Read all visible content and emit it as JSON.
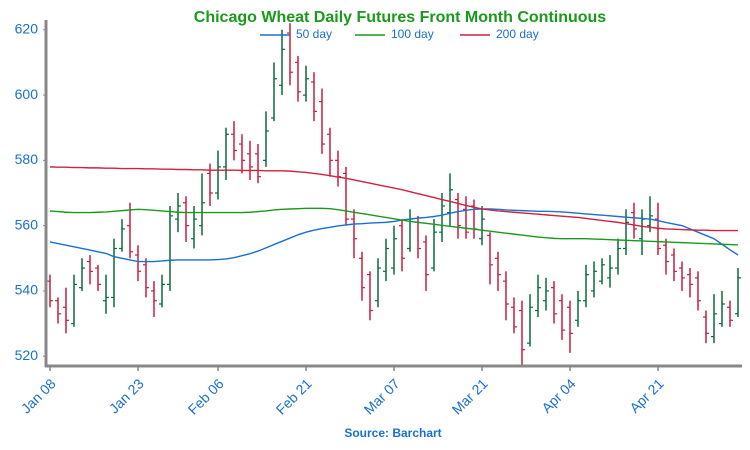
{
  "chart_data": {
    "type": "ohlc",
    "title": "Chicago Wheat Daily Futures Front Month Continuous",
    "source": "Source: Barchart",
    "categories": [
      "Jan 08",
      null,
      null,
      null,
      null,
      null,
      null,
      null,
      null,
      null,
      null,
      "Jan 23",
      null,
      null,
      null,
      null,
      null,
      null,
      null,
      null,
      null,
      "Feb 06",
      null,
      null,
      null,
      null,
      null,
      null,
      null,
      null,
      null,
      null,
      "Feb 21",
      null,
      null,
      null,
      null,
      null,
      null,
      null,
      null,
      null,
      null,
      "Mar 07",
      null,
      null,
      null,
      null,
      null,
      null,
      null,
      null,
      null,
      null,
      "Mar 21",
      null,
      null,
      null,
      null,
      null,
      null,
      null,
      null,
      null,
      null,
      "Apr 04",
      null,
      null,
      null,
      null,
      null,
      null,
      null,
      null,
      null,
      null,
      "Apr 21",
      null,
      null,
      null,
      null,
      null,
      null,
      null,
      null,
      null,
      null
    ],
    "ohlc": {
      "up_color": "#0b6b3a",
      "down_color": "#c4203f",
      "open": [
        543,
        537,
        535,
        530,
        541,
        549,
        547,
        537,
        538,
        553,
        560,
        551,
        548,
        540,
        536,
        542,
        562,
        567,
        556,
        560,
        576,
        570,
        578,
        588,
        585,
        582,
        582,
        580,
        593,
        603,
        619,
        610,
        600,
        604,
        598,
        588,
        580,
        576,
        562,
        550,
        545,
        537,
        546,
        547,
        560,
        553,
        561,
        555,
        547,
        558,
        564,
        568,
        565,
        566,
        556,
        557,
        550,
        543,
        535,
        534,
        524,
        534,
        537,
        541,
        537,
        535,
        531,
        537,
        540,
        543,
        544,
        547,
        553,
        564,
        556,
        560,
        562,
        554,
        551,
        547,
        545,
        544,
        532,
        526,
        530,
        535,
        533
      ],
      "high": [
        545,
        538,
        541,
        545,
        550,
        551,
        548,
        545,
        556,
        562,
        567,
        554,
        550,
        543,
        545,
        566,
        570,
        569,
        566,
        576,
        579,
        583,
        590,
        592,
        588,
        586,
        585,
        595,
        610,
        620,
        622,
        612,
        609,
        607,
        602,
        590,
        583,
        578,
        565,
        552,
        546,
        550,
        556,
        560,
        562,
        565,
        563,
        557,
        562,
        570,
        576,
        570,
        569,
        568,
        566,
        558,
        552,
        546,
        538,
        537,
        539,
        545,
        544,
        543,
        539,
        537,
        540,
        548,
        549,
        550,
        551,
        556,
        565,
        567,
        565,
        569,
        567,
        556,
        553,
        549,
        547,
        546,
        534,
        539,
        540,
        537,
        547
      ],
      "low": [
        535,
        530,
        527,
        529,
        540,
        542,
        540,
        533,
        535,
        552,
        550,
        543,
        538,
        532,
        535,
        540,
        558,
        555,
        553,
        557,
        566,
        568,
        574,
        580,
        576,
        574,
        573,
        578,
        592,
        600,
        603,
        598,
        598,
        592,
        582,
        575,
        572,
        560,
        550,
        537,
        531,
        535,
        543,
        545,
        546,
        552,
        550,
        540,
        546,
        555,
        560,
        556,
        556,
        556,
        554,
        542,
        540,
        531,
        527,
        517,
        523,
        532,
        534,
        530,
        525,
        521,
        529,
        535,
        538,
        542,
        541,
        545,
        551,
        556,
        551,
        558,
        551,
        545,
        543,
        540,
        538,
        534,
        524,
        524,
        529,
        529,
        532
      ],
      "close": [
        537,
        533,
        531,
        542,
        547,
        546,
        542,
        538,
        553,
        559,
        552,
        546,
        541,
        537,
        542,
        563,
        566,
        560,
        562,
        567,
        570,
        578,
        588,
        583,
        580,
        578,
        575,
        589,
        605,
        614,
        607,
        601,
        605,
        595,
        585,
        580,
        575,
        562,
        556,
        541,
        534,
        547,
        553,
        556,
        550,
        562,
        553,
        545,
        558,
        566,
        571,
        560,
        558,
        559,
        562,
        548,
        545,
        536,
        529,
        522,
        535,
        541,
        540,
        533,
        528,
        527,
        537,
        545,
        546,
        548,
        547,
        553,
        561,
        559,
        562,
        563,
        553,
        549,
        546,
        544,
        542,
        537,
        527,
        533,
        536,
        531,
        544
      ]
    },
    "series": [
      {
        "name": "50 day",
        "color": "#1a6fd1",
        "values": [
          555,
          554.5,
          554,
          553.5,
          553,
          552.5,
          552,
          551.5,
          550.5,
          550,
          549.5,
          549,
          549,
          549,
          549.2,
          549.4,
          549.5,
          549.5,
          549.5,
          549.5,
          549.5,
          549.6,
          549.8,
          550.2,
          550.8,
          551.4,
          552.2,
          553.2,
          554.2,
          555.2,
          556.2,
          557.2,
          558,
          558.6,
          559.1,
          559.5,
          559.9,
          560.2,
          560.5,
          560.6,
          560.8,
          560.9,
          561,
          561.3,
          561.7,
          562,
          562.3,
          562.5,
          562.8,
          563.2,
          563.8,
          564.3,
          564.7,
          565,
          565.1,
          565.1,
          565,
          564.8,
          564.7,
          564.6,
          564.5,
          564.4,
          564.4,
          564.3,
          564.2,
          564,
          563.8,
          563.6,
          563.4,
          563.2,
          563,
          562.8,
          562.6,
          562.4,
          562.2,
          562,
          561.5,
          561,
          560.5,
          560,
          559,
          558,
          557,
          556,
          554.3,
          552.6,
          551
        ]
      },
      {
        "name": "100 day",
        "color": "#1a9a1a",
        "values": [
          564.5,
          564.3,
          564.1,
          564,
          564,
          564,
          564.1,
          564.2,
          564.4,
          564.6,
          564.8,
          565,
          564.9,
          564.7,
          564.5,
          564.3,
          564.1,
          564,
          564,
          564,
          564,
          564,
          564,
          564,
          564,
          564.1,
          564.3,
          564.5,
          564.8,
          565,
          565.1,
          565.2,
          565.3,
          565.3,
          565.3,
          565.2,
          564.9,
          564.5,
          564.1,
          563.7,
          563.3,
          562.9,
          562.5,
          562.1,
          561.7,
          561.3,
          561,
          560.7,
          560.4,
          560.1,
          559.8,
          559.5,
          559.2,
          558.9,
          558.6,
          558.3,
          558,
          557.7,
          557.4,
          557.1,
          556.8,
          556.5,
          556.3,
          556.1,
          556,
          556,
          556,
          556,
          555.9,
          555.8,
          555.7,
          555.6,
          555.5,
          555.4,
          555.3,
          555.2,
          555.1,
          555,
          554.9,
          554.8,
          554.7,
          554.6,
          554.5,
          554.4,
          554.3,
          554.2,
          554.1
        ]
      },
      {
        "name": "200 day",
        "color": "#d0213f",
        "values": [
          578,
          577.9,
          577.9,
          577.8,
          577.8,
          577.7,
          577.7,
          577.6,
          577.6,
          577.5,
          577.5,
          577.5,
          577.4,
          577.4,
          577.3,
          577.3,
          577.2,
          577.2,
          577.1,
          577.1,
          577,
          577,
          577,
          577,
          576.9,
          576.9,
          576.9,
          576.8,
          576.8,
          576.8,
          576.7,
          576.5,
          576.3,
          576,
          575.7,
          575.3,
          574.9,
          574.5,
          574,
          573.5,
          573,
          572.5,
          572,
          571.5,
          571,
          570.4,
          569.8,
          569.2,
          568.6,
          568,
          567.4,
          566.8,
          566.2,
          565.6,
          565.1,
          564.8,
          564.5,
          564.3,
          564.1,
          563.9,
          563.7,
          563.5,
          563.3,
          563.1,
          562.9,
          562.7,
          562.5,
          562.2,
          561.9,
          561.6,
          561.3,
          561,
          560.6,
          560.2,
          559.8,
          559.5,
          559.2,
          559,
          558.9,
          558.8,
          558.7,
          558.6,
          558.6,
          558.5,
          558.5,
          558.5,
          558.5
        ]
      }
    ],
    "ylim": [
      517,
      623
    ],
    "yticks": [
      520,
      540,
      560,
      580,
      600,
      620
    ],
    "grid": false,
    "legend": "top"
  }
}
